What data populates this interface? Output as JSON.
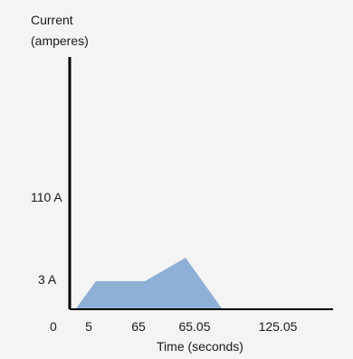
{
  "chart_data": {
    "type": "area",
    "ylabel_lines": [
      "Current",
      "(amperes)"
    ],
    "xlabel": "Time (seconds)",
    "x_origin_label": "0",
    "x_ticks": [
      "5",
      "65",
      "65.05",
      "125.05"
    ],
    "y_ticks": [
      "3 A",
      "110 A"
    ],
    "series": [
      {
        "color": "#8fb0d6",
        "points": [
          {
            "x": "start",
            "y": "0"
          },
          {
            "x": "5",
            "y": "3 A"
          },
          {
            "x": "65",
            "y": "3 A"
          },
          {
            "x": "65.05",
            "y": "peak"
          },
          {
            "x": "after 65.05",
            "y": "0"
          }
        ]
      }
    ],
    "axis_color": "#000000",
    "background": "#f4f4f4"
  }
}
